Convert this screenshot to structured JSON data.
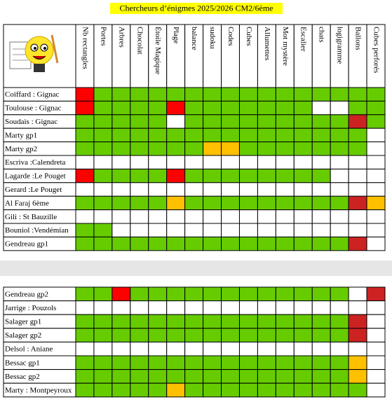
{
  "title": "Chercheurs d’énigmes 2025/2026 CM2/6ème",
  "headers": [
    "Nb rectangles",
    "Portes",
    "Arbres",
    "Chocolat",
    "Étoile Magique",
    "Plage",
    "balance",
    "sudoku",
    "Codes",
    "Cubes",
    "Allumettes",
    "Mot mystère",
    "Escalier",
    "chats",
    "logigramme",
    "Ballons",
    "Cubes perforés"
  ],
  "tables": [
    {
      "rows": [
        {
          "name": "Coiffard : Gignac",
          "cells": [
            "#ff0000",
            "#66cc00",
            "#66cc00",
            "#66cc00",
            "#66cc00",
            "#66cc00",
            "#66cc00",
            "#66cc00",
            "#66cc00",
            "#66cc00",
            "#66cc00",
            "#66cc00",
            "#66cc00",
            "#66cc00",
            "#66cc00",
            "#66cc00",
            "#66cc00"
          ]
        },
        {
          "name": "Toulouse : Gignac",
          "cells": [
            "#ff0000",
            "#66cc00",
            "#66cc00",
            "#66cc00",
            "#66cc00",
            "#ff0000",
            "#66cc00",
            "#66cc00",
            "#66cc00",
            "#66cc00",
            "#66cc00",
            "#66cc00",
            "#66cc00",
            "#ffffff",
            "#ffffff",
            "#66cc00",
            "#66cc00"
          ]
        },
        {
          "name": "Soudais : Gignac",
          "cells": [
            "#66cc00",
            "#66cc00",
            "#66cc00",
            "#66cc00",
            "#66cc00",
            "#ffffff",
            "#66cc00",
            "#66cc00",
            "#66cc00",
            "#66cc00",
            "#66cc00",
            "#66cc00",
            "#66cc00",
            "#66cc00",
            "#66cc00",
            "#cc2222",
            "#66cc00"
          ]
        },
        {
          "name": "Marty gp1",
          "cells": [
            "#66cc00",
            "#66cc00",
            "#66cc00",
            "#66cc00",
            "#66cc00",
            "#66cc00",
            "#66cc00",
            "#66cc00",
            "#66cc00",
            "#66cc00",
            "#66cc00",
            "#66cc00",
            "#66cc00",
            "#66cc00",
            "#66cc00",
            "#66cc00",
            "#ffffff"
          ]
        },
        {
          "name": "Marty gp2",
          "cells": [
            "#66cc00",
            "#66cc00",
            "#66cc00",
            "#66cc00",
            "#66cc00",
            "#66cc00",
            "#66cc00",
            "#ffc000",
            "#ffc000",
            "#66cc00",
            "#66cc00",
            "#66cc00",
            "#66cc00",
            "#66cc00",
            "#66cc00",
            "#66cc00",
            "#ffffff"
          ]
        },
        {
          "name": "Escriva :Calendreta",
          "cells": [
            "#ffffff",
            "#ffffff",
            "#ffffff",
            "#ffffff",
            "#ffffff",
            "#ffffff",
            "#ffffff",
            "#ffffff",
            "#ffffff",
            "#ffffff",
            "#ffffff",
            "#ffffff",
            "#ffffff",
            "#ffffff",
            "#ffffff",
            "#ffffff",
            "#ffffff"
          ]
        },
        {
          "name": "Lagarde :Le Pouget",
          "cells": [
            "#ff0000",
            "#66cc00",
            "#66cc00",
            "#66cc00",
            "#66cc00",
            "#ff0000",
            "#66cc00",
            "#66cc00",
            "#66cc00",
            "#66cc00",
            "#66cc00",
            "#66cc00",
            "#66cc00",
            "#66cc00",
            "#ffffff",
            "#ffffff",
            "#ffffff"
          ]
        },
        {
          "name": "Gerard :Le Pouget",
          "cells": [
            "#ffffff",
            "#ffffff",
            "#ffffff",
            "#ffffff",
            "#ffffff",
            "#ffffff",
            "#ffffff",
            "#ffffff",
            "#ffffff",
            "#ffffff",
            "#ffffff",
            "#ffffff",
            "#ffffff",
            "#ffffff",
            "#ffffff",
            "#ffffff",
            "#ffffff"
          ]
        },
        {
          "name": "Al Faraj 6ème",
          "cells": [
            "#66cc00",
            "#66cc00",
            "#66cc00",
            "#66cc00",
            "#66cc00",
            "#ffc000",
            "#66cc00",
            "#66cc00",
            "#66cc00",
            "#66cc00",
            "#66cc00",
            "#66cc00",
            "#66cc00",
            "#66cc00",
            "#66cc00",
            "#cc2222",
            "#ffc000"
          ]
        },
        {
          "name": "Gili : St Bauzille",
          "cells": [
            "#ffffff",
            "#ffffff",
            "#ffffff",
            "#ffffff",
            "#ffffff",
            "#ffffff",
            "#ffffff",
            "#ffffff",
            "#ffffff",
            "#ffffff",
            "#ffffff",
            "#ffffff",
            "#ffffff",
            "#ffffff",
            "#ffffff",
            "#ffffff",
            "#ffffff"
          ]
        },
        {
          "name": "Bouniol :Vendémian",
          "cells": [
            "#66cc00",
            "#66cc00",
            "#ffffff",
            "#ffffff",
            "#ffffff",
            "#ffffff",
            "#ffffff",
            "#ffffff",
            "#ffffff",
            "#ffffff",
            "#ffffff",
            "#ffffff",
            "#ffffff",
            "#ffffff",
            "#ffffff",
            "#ffffff",
            "#ffffff"
          ]
        },
        {
          "name": "Gendreau gp1",
          "cells": [
            "#66cc00",
            "#66cc00",
            "#66cc00",
            "#66cc00",
            "#66cc00",
            "#66cc00",
            "#66cc00",
            "#66cc00",
            "#66cc00",
            "#66cc00",
            "#66cc00",
            "#66cc00",
            "#66cc00",
            "#66cc00",
            "#66cc00",
            "#cc2222",
            "#ffffff"
          ]
        }
      ]
    },
    {
      "rows": [
        {
          "name": "Gendreau gp2",
          "cells": [
            "#66cc00",
            "#66cc00",
            "#ff0000",
            "#66cc00",
            "#66cc00",
            "#66cc00",
            "#66cc00",
            "#66cc00",
            "#66cc00",
            "#66cc00",
            "#66cc00",
            "#66cc00",
            "#66cc00",
            "#66cc00",
            "#66cc00",
            "#ffffff",
            "#cc2222"
          ]
        },
        {
          "name": "Jarrige : Pouzols",
          "cells": [
            "#ffffff",
            "#ffffff",
            "#ffffff",
            "#ffffff",
            "#ffffff",
            "#ffffff",
            "#ffffff",
            "#ffffff",
            "#ffffff",
            "#ffffff",
            "#ffffff",
            "#ffffff",
            "#ffffff",
            "#ffffff",
            "#ffffff",
            "#ffffff",
            "#ffffff"
          ]
        },
        {
          "name": "Salager gp1",
          "cells": [
            "#66cc00",
            "#66cc00",
            "#66cc00",
            "#66cc00",
            "#66cc00",
            "#66cc00",
            "#66cc00",
            "#66cc00",
            "#66cc00",
            "#66cc00",
            "#66cc00",
            "#66cc00",
            "#66cc00",
            "#66cc00",
            "#66cc00",
            "#cc2222",
            "#ffffff"
          ]
        },
        {
          "name": "Salager gp2",
          "cells": [
            "#66cc00",
            "#66cc00",
            "#66cc00",
            "#66cc00",
            "#66cc00",
            "#66cc00",
            "#66cc00",
            "#66cc00",
            "#66cc00",
            "#66cc00",
            "#66cc00",
            "#66cc00",
            "#66cc00",
            "#66cc00",
            "#66cc00",
            "#cc2222",
            "#ffffff"
          ]
        },
        {
          "name": "Delsol : Aniane",
          "cells": [
            "#ffffff",
            "#ffffff",
            "#ffffff",
            "#ffffff",
            "#ffffff",
            "#ffffff",
            "#ffffff",
            "#ffffff",
            "#ffffff",
            "#ffffff",
            "#ffffff",
            "#ffffff",
            "#ffffff",
            "#ffffff",
            "#ffffff",
            "#ffffff",
            "#ffffff"
          ]
        },
        {
          "name": "Bessac gp1",
          "cells": [
            "#66cc00",
            "#66cc00",
            "#66cc00",
            "#66cc00",
            "#66cc00",
            "#66cc00",
            "#66cc00",
            "#66cc00",
            "#66cc00",
            "#66cc00",
            "#66cc00",
            "#66cc00",
            "#66cc00",
            "#66cc00",
            "#66cc00",
            "#ffc000",
            "#ffffff"
          ]
        },
        {
          "name": "Bessac gp2",
          "cells": [
            "#66cc00",
            "#66cc00",
            "#66cc00",
            "#66cc00",
            "#66cc00",
            "#66cc00",
            "#66cc00",
            "#66cc00",
            "#66cc00",
            "#66cc00",
            "#66cc00",
            "#66cc00",
            "#66cc00",
            "#66cc00",
            "#66cc00",
            "#ffc000",
            "#ffffff"
          ]
        },
        {
          "name": "Marty : Montpeyroux",
          "cells": [
            "#66cc00",
            "#66cc00",
            "#66cc00",
            "#66cc00",
            "#66cc00",
            "#ffc000",
            "#66cc00",
            "#66cc00",
            "#66cc00",
            "#66cc00",
            "#66cc00",
            "#66cc00",
            "#66cc00",
            "#66cc00",
            "#66cc00",
            "#66cc00",
            "#ffffff"
          ]
        }
      ]
    }
  ]
}
